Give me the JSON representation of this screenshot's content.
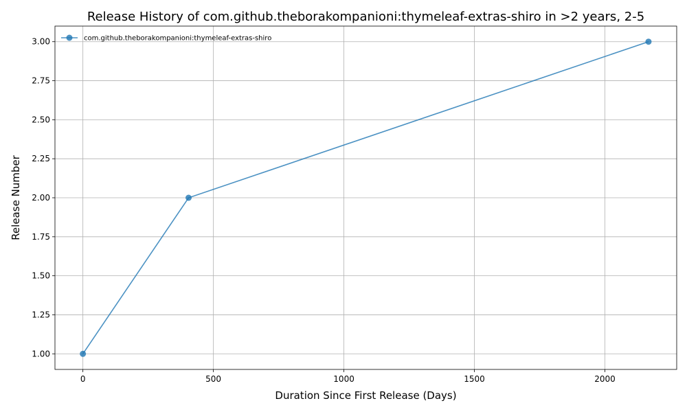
{
  "chart_data": {
    "type": "line",
    "title": "Release History of com.github.theborakompanioni:thymeleaf-extras-shiro in >2 years, 2-5",
    "xlabel": "Duration Since First Release (Days)",
    "ylabel": "Release Number",
    "xlim": [
      -107,
      2275
    ],
    "ylim": [
      0.9,
      3.1
    ],
    "xticks": [
      0,
      500,
      1000,
      1500,
      2000
    ],
    "xtick_labels": [
      "0",
      "500",
      "1000",
      "1500",
      "2000"
    ],
    "yticks": [
      1.0,
      1.25,
      1.5,
      1.75,
      2.0,
      2.25,
      2.5,
      2.75,
      3.0
    ],
    "ytick_labels": [
      "1.00",
      "1.25",
      "1.50",
      "1.75",
      "2.00",
      "2.25",
      "2.50",
      "2.75",
      "3.00"
    ],
    "grid": true,
    "legend_position": "top-left",
    "series": [
      {
        "name": "com.github.theborakompanioni:thymeleaf-extras-shiro",
        "color": "#1f77b4",
        "x": [
          0,
          405,
          2167
        ],
        "y": [
          1,
          2,
          3
        ]
      }
    ]
  }
}
